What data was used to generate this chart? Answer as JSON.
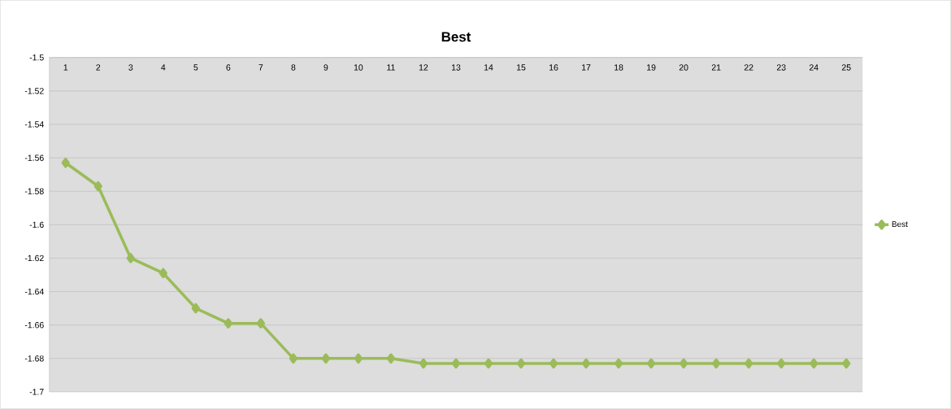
{
  "chart_data": {
    "type": "line",
    "title": "Best",
    "categories": [
      "1",
      "2",
      "3",
      "4",
      "5",
      "6",
      "7",
      "8",
      "9",
      "10",
      "11",
      "12",
      "13",
      "14",
      "15",
      "16",
      "17",
      "18",
      "19",
      "20",
      "21",
      "22",
      "23",
      "24",
      "25"
    ],
    "series": [
      {
        "name": "Best",
        "color": "#9bbb59",
        "values": [
          -1.563,
          -1.577,
          -1.62,
          -1.629,
          -1.65,
          -1.659,
          -1.659,
          -1.68,
          -1.68,
          -1.68,
          -1.68,
          -1.683,
          -1.683,
          -1.683,
          -1.683,
          -1.683,
          -1.683,
          -1.683,
          -1.683,
          -1.683,
          -1.683,
          -1.683,
          -1.683,
          -1.683,
          -1.683
        ]
      }
    ],
    "ylim": [
      -1.7,
      -1.5
    ],
    "yticks": [
      -1.7,
      -1.68,
      -1.66,
      -1.64,
      -1.62,
      -1.6,
      -1.58,
      -1.56,
      -1.54,
      -1.52,
      -1.5
    ],
    "grid": "y",
    "legend": "right",
    "marker": "diamond",
    "line_style": "solid"
  }
}
